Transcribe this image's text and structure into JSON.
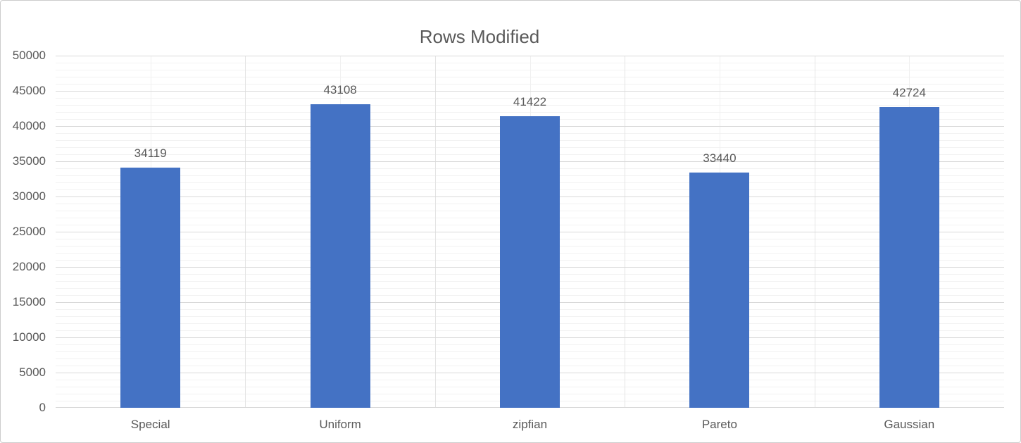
{
  "window": {
    "background_color": "#FFFFFF",
    "border_color": "#CCCCCC"
  },
  "chart_data": {
    "type": "bar",
    "title": "Rows Modified",
    "categories": [
      "Special",
      "Uniform",
      "zipfian",
      "Pareto",
      "Gaussian"
    ],
    "values": [
      34119,
      43108,
      41422,
      33440,
      42724
    ],
    "data_labels": [
      "34119",
      "43108",
      "41422",
      "33440",
      "42724"
    ],
    "xlabel": "",
    "ylabel": "",
    "ylim": [
      0,
      50000
    ],
    "y_major_step": 5000,
    "y_minor_step": 1000,
    "y_tick_labels": [
      "0",
      "5000",
      "10000",
      "15000",
      "20000",
      "25000",
      "30000",
      "35000",
      "40000",
      "45000",
      "50000"
    ],
    "grid": "horizontal major+minor, vertical half-category",
    "legend": "none",
    "colors": {
      "bar": "#4472C4",
      "title_text": "#595959",
      "axis_text": "#595959",
      "data_label_text": "#595959",
      "gridline_major": "#D9D9D9",
      "gridline_minor": "#F2F2F2",
      "gridline_vertical_boundary": "#E4E4E4",
      "gridline_vertical_center": "#F0F0F0",
      "axis_line": "#D6D6D6"
    }
  }
}
